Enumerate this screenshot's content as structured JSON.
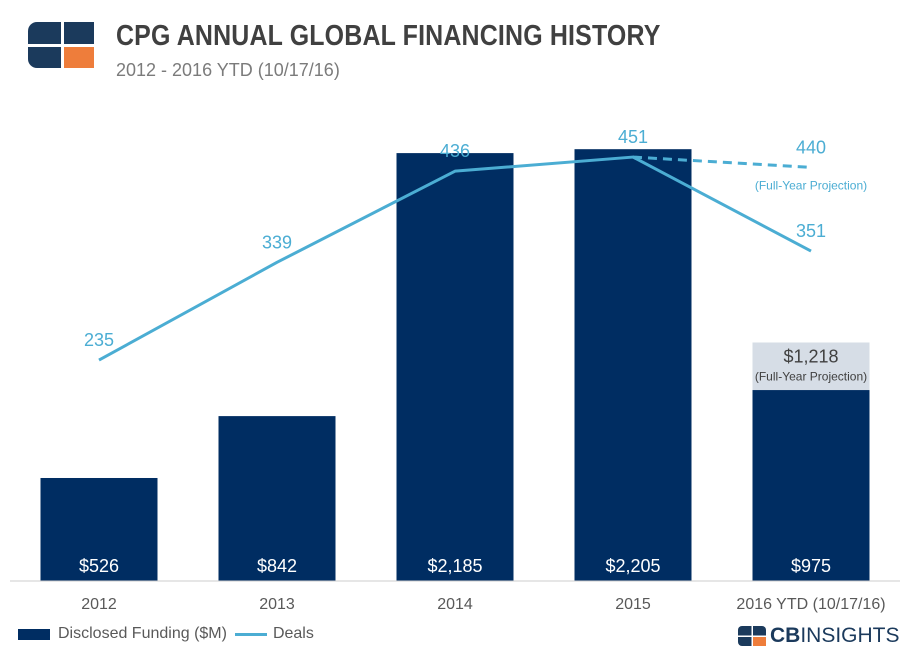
{
  "header": {
    "title": "CPG ANNUAL GLOBAL FINANCING HISTORY",
    "subtitle": "2012 - 2016 YTD (10/17/16)"
  },
  "colors": {
    "bar": "#002d62",
    "line": "#4badd3",
    "projection_box": "#d6dde6",
    "axis": "#cccccc",
    "logo_navy": "#1b3a5c",
    "logo_orange": "#ee7d3b"
  },
  "icons": {
    "logo": "cb-insights-logo-icon",
    "brand": "cb-mark-icon"
  },
  "chart_data": {
    "type": "bar",
    "categories": [
      "2012",
      "2013",
      "2014",
      "2015",
      "2016 YTD (10/17/16)"
    ],
    "series": [
      {
        "name": "Disclosed Funding ($M)",
        "type": "bar",
        "values": [
          526,
          842,
          2185,
          2205,
          975
        ],
        "labels": [
          "$526",
          "$842",
          "$2,185",
          "$2,205",
          "$975"
        ]
      },
      {
        "name": "Deals",
        "type": "line",
        "values": [
          235,
          339,
          436,
          451,
          351
        ],
        "labels": [
          "235",
          "339",
          "436",
          "451",
          "351"
        ]
      }
    ],
    "projection": {
      "funding_value": 1218,
      "funding_label": "$1,218",
      "funding_note": "(Full-Year Projection)",
      "deals_value": 440,
      "deals_label": "440",
      "deals_note": "(Full-Year Projection)"
    },
    "ylim_funding": [
      0,
      2400
    ],
    "ylim_deals": [
      0,
      500
    ],
    "grid": false,
    "legend_position": "bottom-left"
  },
  "legend": {
    "funding_label": "Disclosed Funding ($M)",
    "deals_label": "Deals"
  },
  "footer": {
    "brand_bold": "CB",
    "brand_rest": "INSIGHTS"
  }
}
